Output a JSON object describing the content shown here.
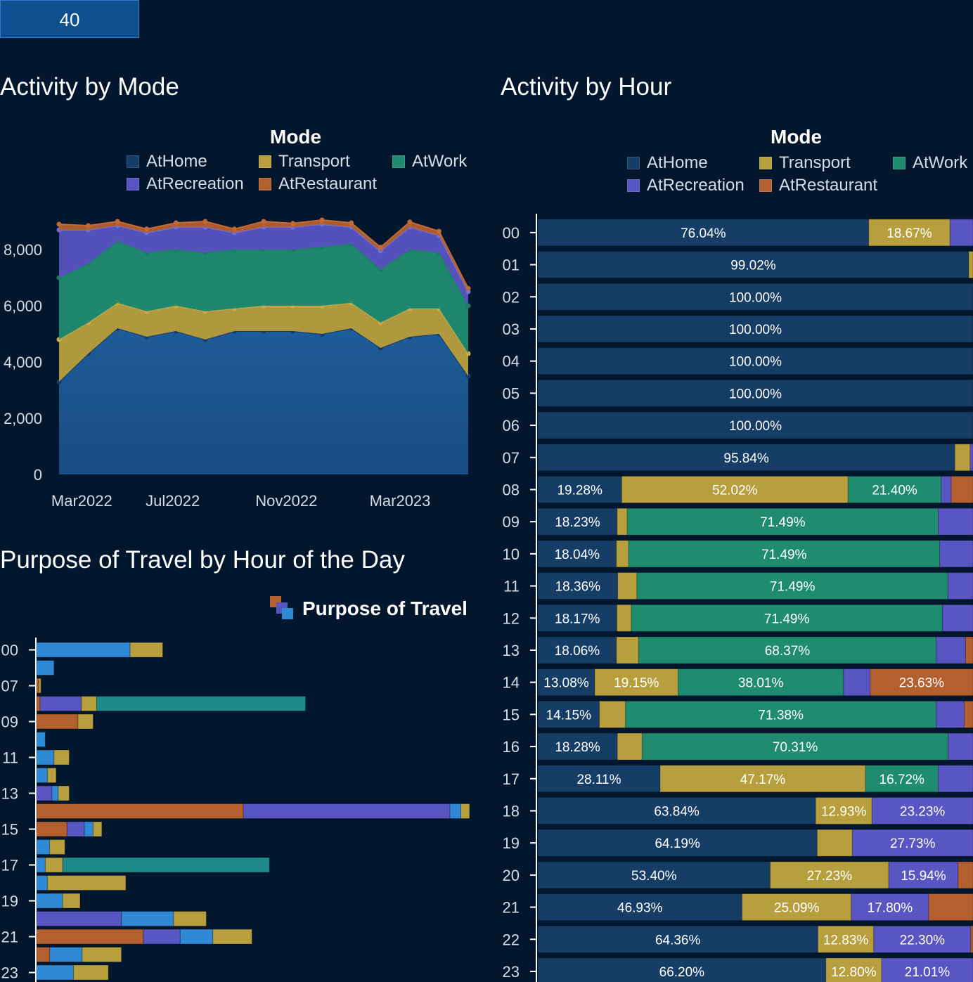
{
  "filter": {
    "value": "40"
  },
  "colors": {
    "AtHome": "#1e5e9c",
    "AtHomeBar": "#163d66",
    "Transport": "#b89f3e",
    "AtWork": "#1f8c70",
    "AtRecreation": "#5955c2",
    "AtRestaurant": "#b45f2e",
    "PurposeBlue": "#2f89d4",
    "PurposeTeal": "#1f8a8a"
  },
  "mode_chart": {
    "title": "Activity by Mode",
    "legend_title": "Mode",
    "legend": [
      "AtHome",
      "Transport",
      "AtWork",
      "AtRecreation",
      "AtRestaurant"
    ]
  },
  "hour_chart": {
    "title": "Activity by Hour",
    "legend_title": "Mode",
    "legend": [
      "AtHome",
      "Transport",
      "AtWork",
      "AtRecreation",
      "AtRestaurant"
    ]
  },
  "purpose_chart": {
    "title": "Purpose of Travel by Hour of the Day",
    "legend_title": "Purpose of Travel"
  },
  "chart_data": [
    {
      "type": "area",
      "stacked": true,
      "title": "Activity by Mode",
      "ylim": [
        0,
        9000
      ],
      "yticks": [
        "0",
        "2,000",
        "4,000",
        "6,000",
        "8,000"
      ],
      "ytick_values": [
        0,
        2000,
        4000,
        6000,
        8000
      ],
      "xtick_labels": [
        "Mar2022",
        "Jul2022",
        "Nov2022",
        "Mar2023"
      ],
      "xtick_index": [
        1,
        5,
        10,
        15
      ],
      "x_count": 19,
      "series": [
        {
          "name": "AtHome",
          "values": [
            3300,
            4300,
            5200,
            4900,
            5100,
            4800,
            5100,
            5100,
            5100,
            5000,
            5200,
            4500,
            4900,
            5000,
            3500
          ]
        },
        {
          "name": "Transport",
          "values": [
            1500,
            1100,
            900,
            900,
            900,
            1000,
            800,
            900,
            900,
            1000,
            900,
            900,
            1000,
            900,
            800
          ]
        },
        {
          "name": "AtWork",
          "values": [
            2200,
            2100,
            2200,
            2100,
            2000,
            2100,
            2100,
            2000,
            2000,
            2100,
            2100,
            1900,
            2100,
            2000,
            1700
          ]
        },
        {
          "name": "AtRecreation",
          "values": [
            1700,
            1200,
            550,
            700,
            800,
            900,
            600,
            800,
            800,
            800,
            600,
            650,
            800,
            600,
            500
          ]
        },
        {
          "name": "AtRestaurant",
          "values": [
            200,
            150,
            150,
            130,
            150,
            200,
            130,
            200,
            130,
            150,
            150,
            130,
            180,
            150,
            120
          ]
        }
      ]
    },
    {
      "type": "bar",
      "orientation": "horizontal",
      "stacked_percent": true,
      "title": "Activity by Hour",
      "categories": [
        "00",
        "01",
        "02",
        "03",
        "04",
        "05",
        "06",
        "07",
        "08",
        "09",
        "10",
        "11",
        "12",
        "13",
        "14",
        "15",
        "16",
        "17",
        "18",
        "19",
        "20",
        "21",
        "22",
        "23"
      ],
      "rows": [
        [
          [
            "AtHome",
            76.04,
            "76.04%"
          ],
          [
            "Transport",
            18.67,
            "18.67%"
          ],
          [
            "AtRecreation",
            5.29,
            ""
          ]
        ],
        [
          [
            "AtHome",
            99.02,
            "99.02%"
          ],
          [
            "Transport",
            0.98,
            ""
          ]
        ],
        [
          [
            "AtHome",
            100,
            "100.00%"
          ]
        ],
        [
          [
            "AtHome",
            100,
            "100.00%"
          ]
        ],
        [
          [
            "AtHome",
            100,
            "100.00%"
          ]
        ],
        [
          [
            "AtHome",
            100,
            "100.00%"
          ]
        ],
        [
          [
            "AtHome",
            100,
            "100.00%"
          ]
        ],
        [
          [
            "AtHome",
            95.84,
            "95.84%"
          ],
          [
            "Transport",
            3.5,
            ""
          ],
          [
            "AtRecreation",
            0.66,
            ""
          ]
        ],
        [
          [
            "AtHome",
            19.28,
            "19.28%"
          ],
          [
            "Transport",
            52.02,
            "52.02%"
          ],
          [
            "AtWork",
            21.4,
            "21.40%"
          ],
          [
            "AtRecreation",
            2.3,
            ""
          ],
          [
            "AtRestaurant",
            5.0,
            ""
          ]
        ],
        [
          [
            "AtHome",
            18.23,
            "18.23%"
          ],
          [
            "Transport",
            2.3,
            ""
          ],
          [
            "AtWork",
            71.49,
            "71.49%"
          ],
          [
            "AtRecreation",
            7.98,
            ""
          ]
        ],
        [
          [
            "AtHome",
            18.04,
            "18.04%"
          ],
          [
            "Transport",
            2.8,
            ""
          ],
          [
            "AtWork",
            71.49,
            "71.49%"
          ],
          [
            "AtRecreation",
            7.67,
            ""
          ]
        ],
        [
          [
            "AtHome",
            18.36,
            "18.36%"
          ],
          [
            "Transport",
            4.4,
            ""
          ],
          [
            "AtWork",
            71.49,
            "71.49%"
          ],
          [
            "AtRecreation",
            5.75,
            ""
          ]
        ],
        [
          [
            "AtHome",
            18.17,
            "18.17%"
          ],
          [
            "Transport",
            3.3,
            ""
          ],
          [
            "AtWork",
            71.49,
            "71.49%"
          ],
          [
            "AtRecreation",
            7.04,
            ""
          ]
        ],
        [
          [
            "AtHome",
            18.06,
            "18.06%"
          ],
          [
            "Transport",
            5.1,
            ""
          ],
          [
            "AtWork",
            68.37,
            "68.37%"
          ],
          [
            "AtRecreation",
            6.77,
            ""
          ],
          [
            "AtRestaurant",
            1.7,
            ""
          ]
        ],
        [
          [
            "AtHome",
            13.08,
            "13.08%"
          ],
          [
            "Transport",
            19.15,
            "19.15%"
          ],
          [
            "AtWork",
            38.01,
            "38.01%"
          ],
          [
            "AtRecreation",
            6.13,
            ""
          ],
          [
            "AtRestaurant",
            23.63,
            "23.63%"
          ]
        ],
        [
          [
            "AtHome",
            14.15,
            "14.15%"
          ],
          [
            "Transport",
            6.0,
            ""
          ],
          [
            "AtWork",
            71.38,
            "71.38%"
          ],
          [
            "AtRecreation",
            6.47,
            ""
          ],
          [
            "AtRestaurant",
            2.0,
            ""
          ]
        ],
        [
          [
            "AtHome",
            18.28,
            "18.28%"
          ],
          [
            "Transport",
            5.7,
            ""
          ],
          [
            "AtWork",
            70.31,
            "70.31%"
          ],
          [
            "AtRecreation",
            5.71,
            ""
          ]
        ],
        [
          [
            "AtHome",
            28.11,
            "28.11%"
          ],
          [
            "Transport",
            47.17,
            "47.17%"
          ],
          [
            "AtWork",
            16.72,
            "16.72%"
          ],
          [
            "AtRecreation",
            8.0,
            ""
          ]
        ],
        [
          [
            "AtHome",
            63.84,
            "63.84%"
          ],
          [
            "Transport",
            12.93,
            "12.93%"
          ],
          [
            "AtRecreation",
            23.23,
            "23.23%"
          ]
        ],
        [
          [
            "AtHome",
            64.19,
            "64.19%"
          ],
          [
            "Transport",
            8.08,
            ""
          ],
          [
            "AtRecreation",
            27.73,
            "27.73%"
          ]
        ],
        [
          [
            "AtHome",
            53.4,
            "53.40%"
          ],
          [
            "Transport",
            27.23,
            "27.23%"
          ],
          [
            "AtRecreation",
            15.94,
            "15.94%"
          ],
          [
            "AtRestaurant",
            3.43,
            ""
          ]
        ],
        [
          [
            "AtHome",
            46.93,
            "46.93%"
          ],
          [
            "Transport",
            25.09,
            "25.09%"
          ],
          [
            "AtRecreation",
            17.8,
            "17.80%"
          ],
          [
            "AtRestaurant",
            10.18,
            ""
          ]
        ],
        [
          [
            "AtHome",
            64.36,
            "64.36%"
          ],
          [
            "Transport",
            12.83,
            "12.83%"
          ],
          [
            "AtRecreation",
            22.3,
            "22.30%"
          ],
          [
            "AtRestaurant",
            0.51,
            ""
          ]
        ],
        [
          [
            "AtHome",
            66.2,
            "66.20%"
          ],
          [
            "Transport",
            12.8,
            "12.80%"
          ],
          [
            "AtRecreation",
            21.01,
            "21.01%"
          ]
        ]
      ]
    },
    {
      "type": "bar",
      "orientation": "horizontal",
      "stacked": true,
      "title": "Purpose of Travel by Hour of the Day",
      "tick_labels": [
        "00",
        "07",
        "09",
        "11",
        "13",
        "15",
        "17",
        "19",
        "21",
        "23"
      ],
      "tick_rows": [
        0,
        2,
        4,
        6,
        8,
        10,
        12,
        14,
        16,
        18
      ],
      "xmax": 100,
      "rows": [
        [
          [
            "PurposeBlue",
            21.5
          ],
          [
            "Transport",
            7.5
          ]
        ],
        [
          [
            "PurposeBlue",
            4
          ]
        ],
        [
          [
            "AtRestaurant",
            0.5
          ],
          [
            "Transport",
            0.5
          ]
        ],
        [
          [
            "AtRestaurant",
            0.8
          ],
          [
            "AtRecreation",
            9.5
          ],
          [
            "Transport",
            3.5
          ],
          [
            "PurposeTeal",
            48
          ]
        ],
        [
          [
            "AtRestaurant",
            9.5
          ],
          [
            "Transport",
            3.5
          ]
        ],
        [
          [
            "PurposeBlue",
            2
          ]
        ],
        [
          [
            "PurposeBlue",
            4
          ],
          [
            "Transport",
            3.5
          ]
        ],
        [
          [
            "PurposeBlue",
            2.5
          ],
          [
            "Transport",
            2
          ]
        ],
        [
          [
            "AtRecreation",
            3.5
          ],
          [
            "PurposeBlue",
            1.5
          ],
          [
            "Transport",
            2.5
          ]
        ],
        [
          [
            "AtRestaurant",
            47.5
          ],
          [
            "AtRecreation",
            47.5
          ],
          [
            "PurposeBlue",
            2.5
          ],
          [
            "Transport",
            2
          ]
        ],
        [
          [
            "AtRestaurant",
            7
          ],
          [
            "AtRecreation",
            4
          ],
          [
            "PurposeBlue",
            2
          ],
          [
            "Transport",
            2
          ]
        ],
        [
          [
            "PurposeBlue",
            3
          ],
          [
            "Transport",
            3.5
          ]
        ],
        [
          [
            "PurposeBlue",
            2
          ],
          [
            "Transport",
            4
          ],
          [
            "PurposeTeal",
            47.5
          ]
        ],
        [
          [
            "PurposeBlue",
            2.5
          ],
          [
            "Transport",
            18
          ]
        ],
        [
          [
            "PurposeBlue",
            6
          ],
          [
            "Transport",
            4
          ]
        ],
        [
          [
            "AtRecreation",
            19.5
          ],
          [
            "PurposeBlue",
            12
          ],
          [
            "Transport",
            7.5
          ]
        ],
        [
          [
            "AtRestaurant",
            24.5
          ],
          [
            "AtRecreation",
            8.5
          ],
          [
            "PurposeBlue",
            7.5
          ],
          [
            "Transport",
            9
          ]
        ],
        [
          [
            "AtRestaurant",
            3
          ],
          [
            "PurposeBlue",
            7.5
          ],
          [
            "Transport",
            9
          ]
        ],
        [
          [
            "PurposeBlue",
            8.5
          ],
          [
            "Transport",
            8
          ]
        ]
      ]
    }
  ]
}
